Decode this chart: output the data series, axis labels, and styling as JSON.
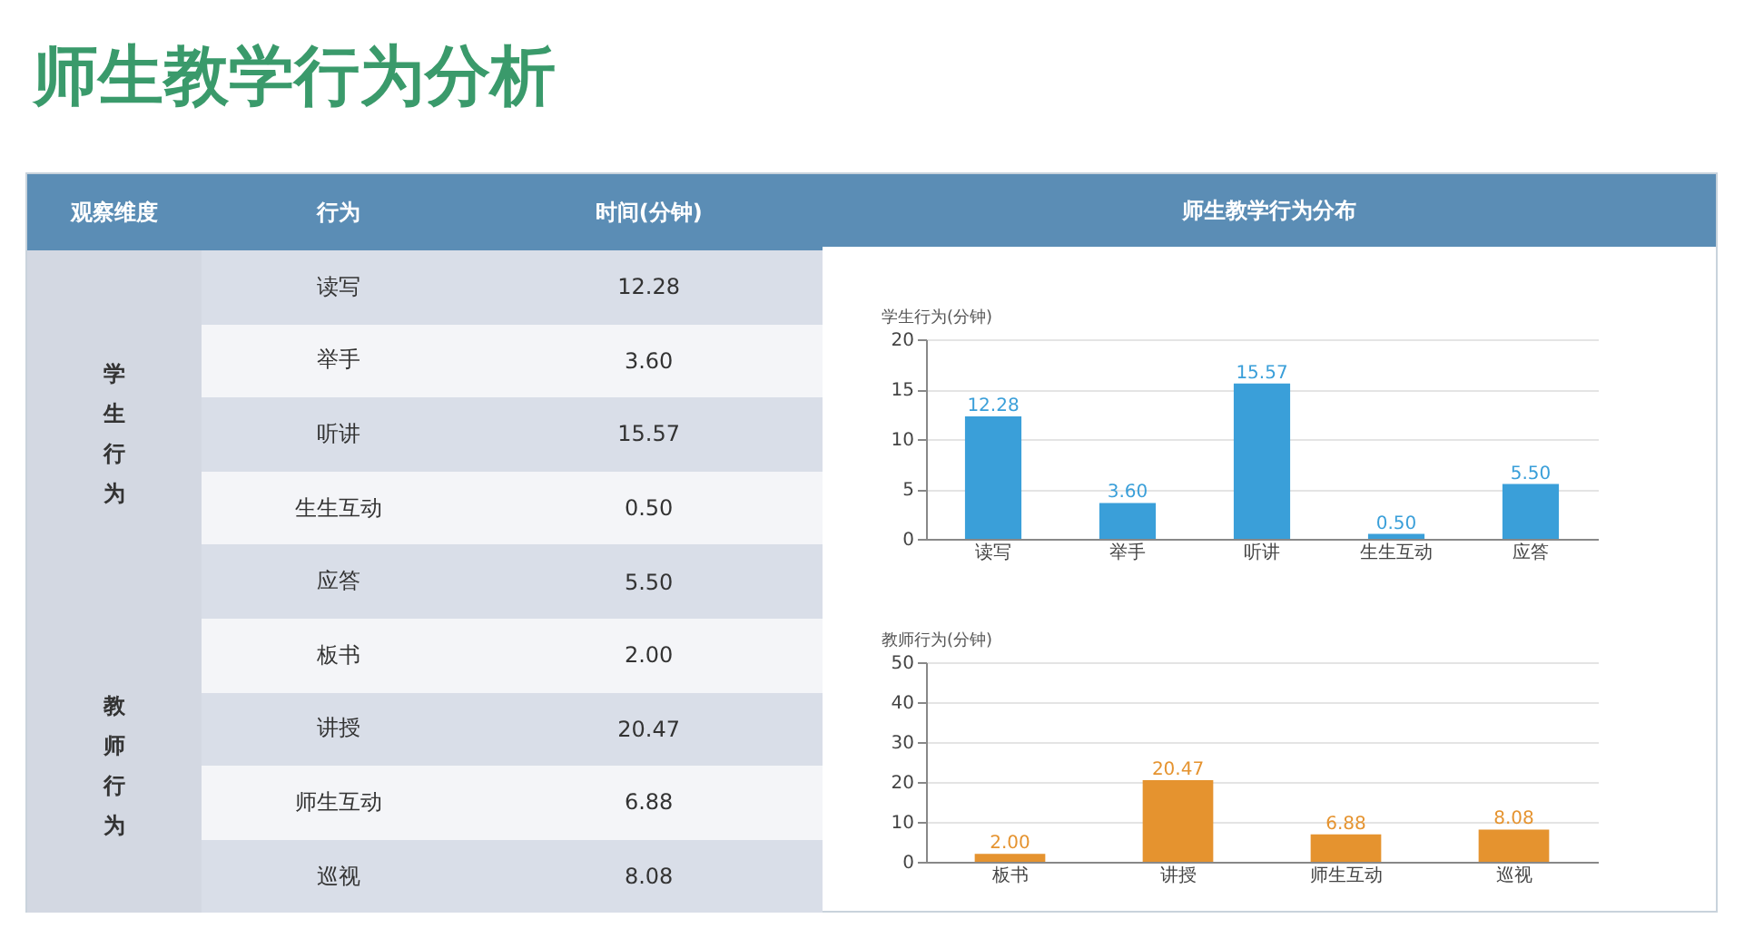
{
  "chart_data": [
    {
      "type": "other",
      "title": "师生教学行为分析",
      "subtitle": "师生教学行为分布",
      "annotations": [
        "观察维度",
        "行为",
        "时间(分钟)",
        "学生行为",
        "教师行为"
      ]
    },
    {
      "type": "bar",
      "ylabel": "学生行为(分钟)",
      "categories": [
        "读写",
        "举手",
        "听讲",
        "生生互动",
        "应答"
      ],
      "values": [
        12.28,
        3.6,
        15.57,
        0.5,
        5.5
      ],
      "value_labels": [
        "12.28",
        "3.60",
        "15.57",
        "0.50",
        "5.50"
      ],
      "color": "#3a9fd9",
      "ylim": [
        0,
        20
      ],
      "yticks": [
        0,
        5,
        10,
        15,
        20
      ],
      "grid": "y"
    },
    {
      "type": "bar",
      "ylabel": "教师行为(分钟)",
      "categories": [
        "板书",
        "讲授",
        "师生互动",
        "巡视"
      ],
      "values": [
        2,
        20.47,
        6.88,
        8.08
      ],
      "value_labels": [
        "2.00",
        "20.47",
        "6.88",
        "8.08"
      ],
      "color": "#e5932f",
      "ylim": [
        0,
        50
      ],
      "yticks": [
        0,
        10,
        20,
        30,
        40,
        50
      ],
      "grid": "y"
    }
  ]
}
